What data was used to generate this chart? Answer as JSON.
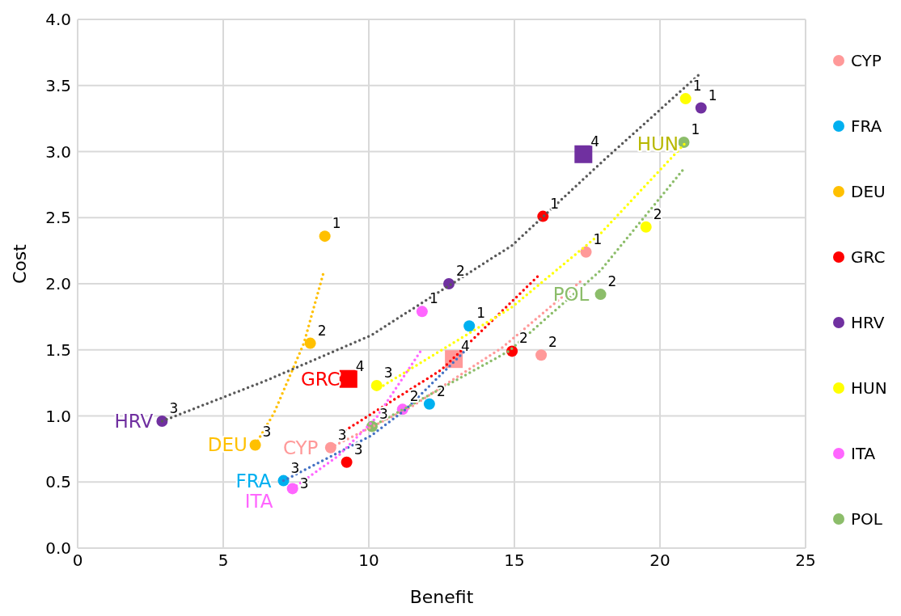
{
  "chart_data": {
    "type": "scatter",
    "xlabel": "Benefit",
    "ylabel": "Cost",
    "xlim": [
      0,
      25
    ],
    "xticks": [
      0,
      5,
      10,
      15,
      20,
      25
    ],
    "ylim": [
      0,
      4
    ],
    "yticks": [
      {
        "value": 0,
        "label": "0.0"
      },
      {
        "value": 0.5,
        "label": "0.5"
      },
      {
        "value": 1,
        "label": "1.0"
      },
      {
        "value": 1.5,
        "label": "1.5"
      },
      {
        "value": 2,
        "label": "2.0"
      },
      {
        "value": 2.5,
        "label": "2.5"
      },
      {
        "value": 3,
        "label": "3.0"
      },
      {
        "value": 3.5,
        "label": "3.5"
      },
      {
        "value": 4,
        "label": "4.0"
      }
    ],
    "grid": true,
    "legend": "right",
    "series": [
      {
        "name": "CYP",
        "color": "#ff9999",
        "marker": "circle",
        "x": [
          17.46,
          15.92,
          8.69
        ],
        "values": [
          2.24,
          1.46,
          0.76
        ]
      },
      {
        "name": "FRA",
        "color": "#00b0f0",
        "marker": "circle",
        "x": [
          13.45,
          12.08,
          7.07
        ],
        "values": [
          1.68,
          1.09,
          0.51
        ]
      },
      {
        "name": "DEU",
        "color": "#ffc000",
        "marker": "circle",
        "x": [
          8.49,
          7.99,
          6.1
        ],
        "values": [
          2.36,
          1.55,
          0.78
        ]
      },
      {
        "name": "GRC",
        "color": "#ff0000",
        "marker": "circle",
        "x": [
          15.98,
          14.92,
          9.24
        ],
        "values": [
          2.51,
          1.49,
          0.65
        ]
      },
      {
        "name": "HRV",
        "color": "#7030a0",
        "marker": "circle",
        "x": [
          21.41,
          12.75,
          2.9
        ],
        "values": [
          3.33,
          2.0,
          0.96
        ]
      },
      {
        "name": "HUN",
        "color": "#ffff00",
        "marker": "circle",
        "x": [
          20.88,
          19.52,
          10.27
        ],
        "values": [
          3.4,
          2.43,
          1.23
        ]
      },
      {
        "name": "ITA",
        "color": "#ff66ff",
        "marker": "circle",
        "x": [
          11.83,
          11.16,
          7.38
        ],
        "values": [
          1.79,
          1.05,
          0.45
        ]
      },
      {
        "name": "POL",
        "color": "#8cbd6a",
        "marker": "circle",
        "x": [
          20.82,
          17.96,
          10.11
        ],
        "values": [
          3.07,
          1.92,
          0.92
        ]
      },
      {
        "type": "scatter",
        "marker": "square",
        "color": "#ff9999",
        "x": [
          12.92
        ],
        "values": [
          1.43
        ]
      },
      {
        "type": "scatter",
        "marker": "square",
        "color": "#ff0000",
        "x": [
          9.3
        ],
        "values": [
          1.28
        ]
      },
      {
        "type": "scatter",
        "marker": "square",
        "color": "#7030a0",
        "x": [
          17.37
        ],
        "values": [
          2.98
        ]
      },
      {
        "type": "line",
        "marker": "none",
        "line_style": "dotted",
        "color": "#ff9999",
        "x": [
          8.69,
          11.47,
          14.6,
          17.34
        ],
        "values": [
          0.76,
          1.07,
          1.52,
          2.03
        ]
      },
      {
        "type": "line",
        "marker": "none",
        "line_style": "dotted",
        "color": "#4472c4",
        "x": [
          7.07,
          10.08,
          11.27,
          13.34
        ],
        "values": [
          0.51,
          0.85,
          1.05,
          1.5
        ]
      },
      {
        "type": "line",
        "marker": "none",
        "line_style": "dotted",
        "color": "#ffc000",
        "x": [
          6.1,
          6.74,
          7.77,
          8.44
        ],
        "values": [
          0.78,
          1.02,
          1.55,
          2.08
        ]
      },
      {
        "type": "line",
        "marker": "none",
        "line_style": "dotted",
        "color": "#ff0000",
        "x": [
          9.19,
          12.5,
          15.87
        ],
        "values": [
          0.89,
          1.35,
          2.07
        ]
      },
      {
        "type": "line",
        "marker": "none",
        "line_style": "dotted",
        "color": "#595959",
        "x": [
          2.9,
          6.5,
          10.08,
          14.92,
          18.0,
          21.33
        ],
        "values": [
          0.96,
          1.27,
          1.61,
          2.29,
          2.92,
          3.58
        ]
      },
      {
        "type": "line",
        "marker": "none",
        "line_style": "dotted",
        "color": "#ffff00",
        "x": [
          10.5,
          14.9,
          17.96,
          20.85
        ],
        "values": [
          1.23,
          1.82,
          2.38,
          3.06
        ]
      },
      {
        "type": "line",
        "marker": "none",
        "line_style": "dotted",
        "color": "#ff66ff",
        "x": [
          7.38,
          8.96,
          10.27,
          11.78
        ],
        "values": [
          0.45,
          0.7,
          0.99,
          1.49
        ]
      },
      {
        "type": "line",
        "marker": "none",
        "line_style": "dotted",
        "color": "#8cbd6a",
        "x": [
          10.11,
          14.81,
          17.96,
          20.82
        ],
        "values": [
          0.92,
          1.49,
          2.1,
          2.87
        ]
      }
    ],
    "annotations": [
      {
        "text": "CYP",
        "x": 8.69,
        "y": 0.76
      },
      {
        "text": "FRA",
        "x": 7.07,
        "y": 0.51
      },
      {
        "text": "DEU",
        "x": 6.1,
        "y": 0.78
      },
      {
        "text": "GRC",
        "x": 9.3,
        "y": 1.28
      },
      {
        "text": "HRV",
        "x": 2.9,
        "y": 0.96
      },
      {
        "text": "HUN",
        "x": 20.85,
        "y": 3.06
      },
      {
        "text": "ITA",
        "x": 7.38,
        "y": 0.45
      },
      {
        "text": "POL",
        "x": 17.96,
        "y": 1.92
      },
      {
        "text": "1",
        "x": 17.46,
        "y": 2.24
      },
      {
        "text": "2",
        "x": 15.92,
        "y": 1.46
      },
      {
        "text": "3",
        "x": 8.69,
        "y": 0.76
      },
      {
        "text": "1",
        "x": 13.45,
        "y": 1.68
      },
      {
        "text": "2",
        "x": 12.08,
        "y": 1.09
      },
      {
        "text": "3",
        "x": 7.07,
        "y": 0.51
      },
      {
        "text": "1",
        "x": 8.49,
        "y": 2.36
      },
      {
        "text": "2",
        "x": 7.99,
        "y": 1.55
      },
      {
        "text": "3",
        "x": 6.1,
        "y": 0.78
      },
      {
        "text": "1",
        "x": 15.98,
        "y": 2.51
      },
      {
        "text": "2",
        "x": 14.92,
        "y": 1.49
      },
      {
        "text": "3",
        "x": 9.24,
        "y": 0.65
      },
      {
        "text": "1",
        "x": 21.41,
        "y": 3.33
      },
      {
        "text": "2",
        "x": 12.75,
        "y": 2.0
      },
      {
        "text": "3",
        "x": 2.9,
        "y": 0.96
      },
      {
        "text": "1",
        "x": 20.88,
        "y": 3.4
      },
      {
        "text": "2",
        "x": 19.52,
        "y": 2.43
      },
      {
        "text": "3",
        "x": 10.27,
        "y": 1.23
      },
      {
        "text": "1",
        "x": 11.83,
        "y": 1.79
      },
      {
        "text": "2",
        "x": 11.16,
        "y": 1.05
      },
      {
        "text": "3",
        "x": 7.38,
        "y": 0.45
      },
      {
        "text": "1",
        "x": 20.82,
        "y": 3.07
      },
      {
        "text": "2",
        "x": 17.96,
        "y": 1.92
      },
      {
        "text": "3",
        "x": 10.11,
        "y": 0.92
      },
      {
        "text": "4",
        "x": 12.92,
        "y": 1.43
      },
      {
        "text": "4",
        "x": 9.3,
        "y": 1.28
      },
      {
        "text": "4",
        "x": 17.37,
        "y": 2.98
      }
    ]
  }
}
